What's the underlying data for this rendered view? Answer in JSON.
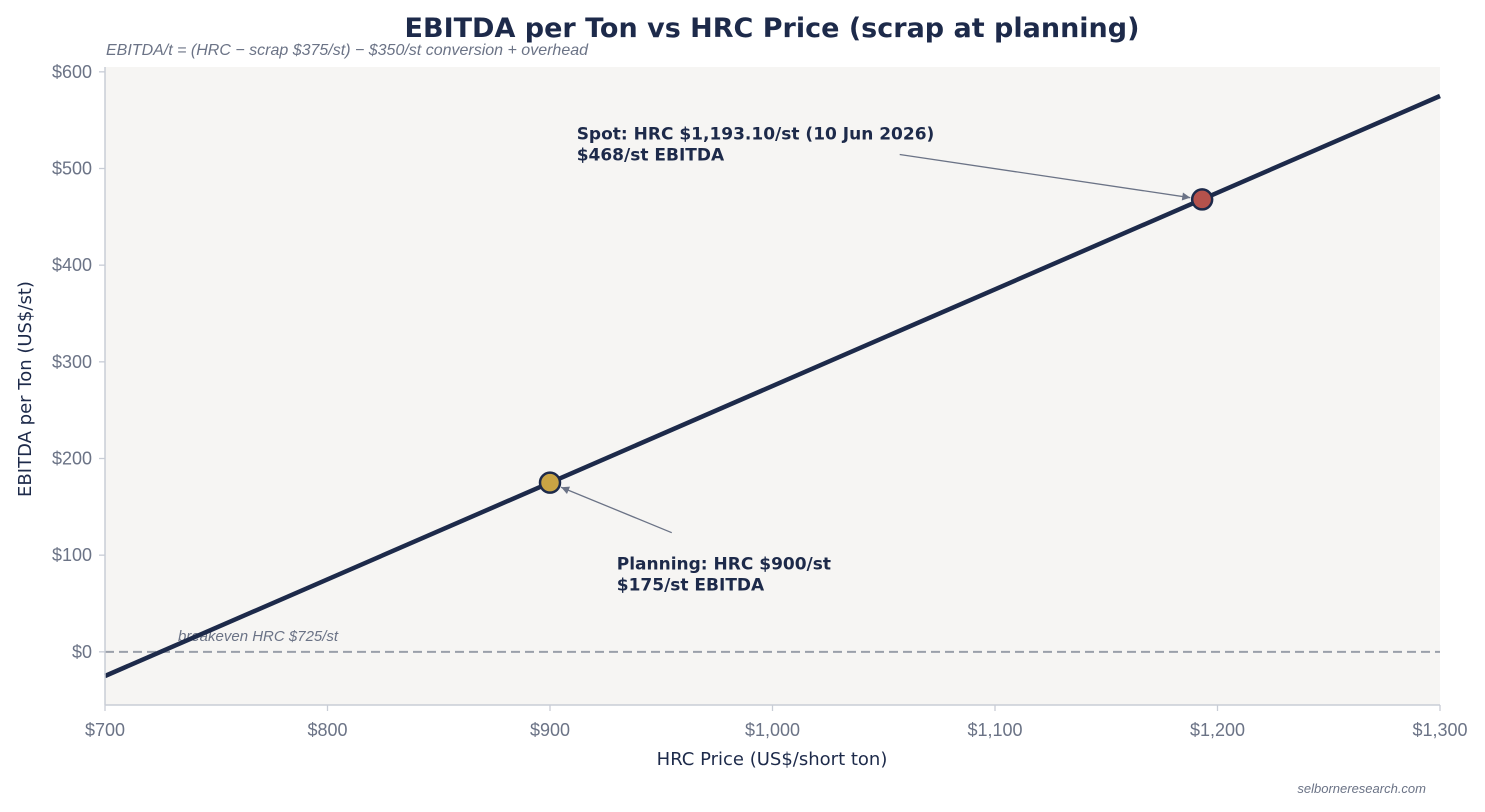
{
  "chart_data": {
    "type": "line",
    "title": "EBITDA per Ton vs HRC Price (scrap at planning)",
    "subtitle": "EBITDA/t = (HRC − scrap $375/st) − $350/st conversion + overhead",
    "xlabel": "HRC Price (US$/short ton)",
    "ylabel": "EBITDA per Ton (US$/st)",
    "xlim": [
      700,
      1300
    ],
    "ylim": [
      -55,
      605
    ],
    "x_ticks": [
      700,
      800,
      900,
      1000,
      1100,
      1200,
      1300
    ],
    "x_tick_labels": [
      "$700",
      "$800",
      "$900",
      "$1,000",
      "$1,100",
      "$1,200",
      "$1,300"
    ],
    "y_ticks": [
      0,
      100,
      200,
      300,
      400,
      500,
      600
    ],
    "y_tick_labels": [
      "$0",
      "$100",
      "$200",
      "$300",
      "$400",
      "$500",
      "$600"
    ],
    "grid": false,
    "series": [
      {
        "x": [
          700,
          1300
        ],
        "values": [
          -25,
          575
        ],
        "color": "#1d2a4a"
      }
    ],
    "reference_line": {
      "y": 0,
      "label": "breakeven HRC $725/st",
      "color": "#9aa0aa"
    },
    "points": [
      {
        "x": 900,
        "y": 175,
        "color": "#c9a444",
        "label_lines": [
          "Planning: HRC $900/st",
          "$175/st EBITDA"
        ],
        "label_at": [
          930,
          85
        ]
      },
      {
        "x": 1193.1,
        "y": 468,
        "color": "#b5524c",
        "label_lines": [
          "Spot: HRC $1,193.10/st (10 Jun 2026)",
          "$468/st EBITDA"
        ],
        "label_at": [
          912,
          530
        ]
      }
    ],
    "plot_background": "#f6f5f3",
    "credit": "selborneresearch.com"
  }
}
